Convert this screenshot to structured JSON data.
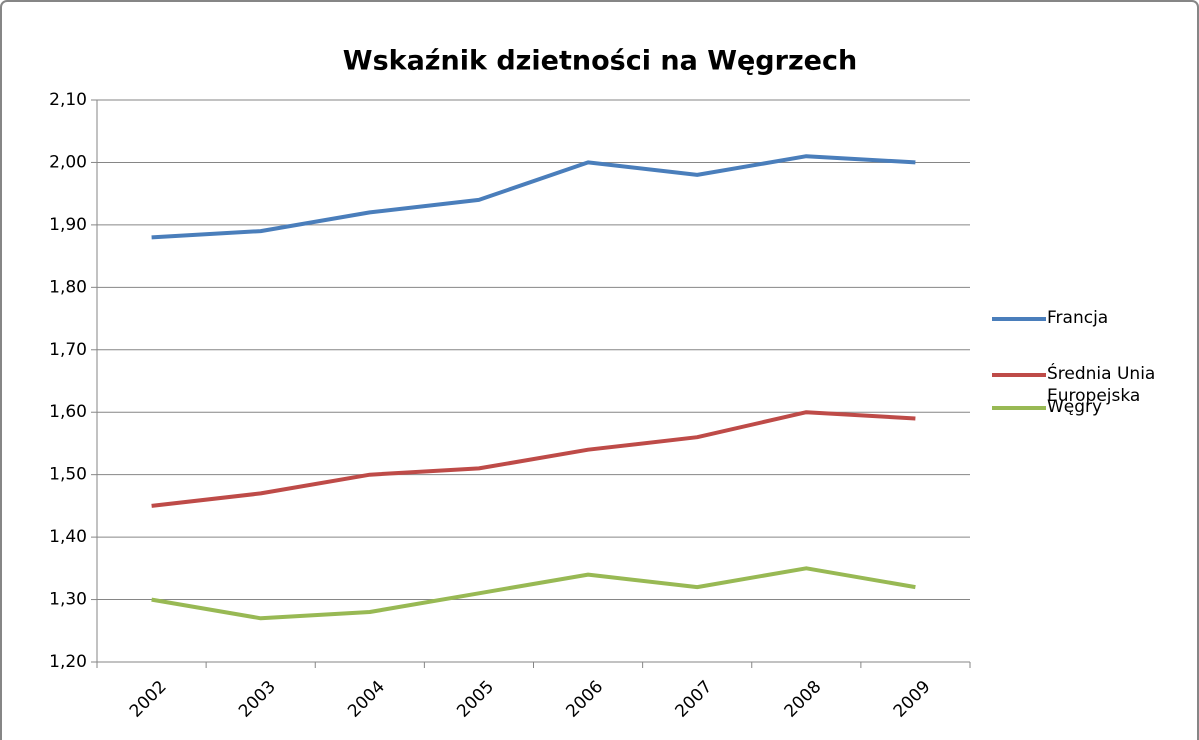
{
  "chart_data": {
    "type": "line",
    "title": "Wskaźnik dzietności na Węgrzech",
    "categories": [
      "2002",
      "2003",
      "2004",
      "2005",
      "2006",
      "2007",
      "2008",
      "2009"
    ],
    "series": [
      {
        "name": "Francja",
        "color": "#4a7ebb",
        "values": [
          1.88,
          1.89,
          1.92,
          1.94,
          2.0,
          1.98,
          2.01,
          2.0
        ]
      },
      {
        "name": "Średnia Unia Europejska",
        "color": "#be4b48",
        "values": [
          1.45,
          1.47,
          1.5,
          1.51,
          1.54,
          1.56,
          1.6,
          1.59
        ]
      },
      {
        "name": "Węgry",
        "color": "#98b954",
        "values": [
          1.3,
          1.27,
          1.28,
          1.31,
          1.34,
          1.32,
          1.35,
          1.32
        ]
      }
    ],
    "ylim": [
      1.2,
      2.1
    ],
    "yticks": [
      {
        "value": 1.2,
        "label": "1,20"
      },
      {
        "value": 1.3,
        "label": "1,30"
      },
      {
        "value": 1.4,
        "label": "1,40"
      },
      {
        "value": 1.5,
        "label": "1,50"
      },
      {
        "value": 1.6,
        "label": "1,60"
      },
      {
        "value": 1.7,
        "label": "1,70"
      },
      {
        "value": 1.8,
        "label": "1,80"
      },
      {
        "value": 1.9,
        "label": "1,90"
      },
      {
        "value": 2.0,
        "label": "2,00"
      },
      {
        "value": 2.1,
        "label": "2,10"
      }
    ],
    "grid": true,
    "legend": "right"
  }
}
